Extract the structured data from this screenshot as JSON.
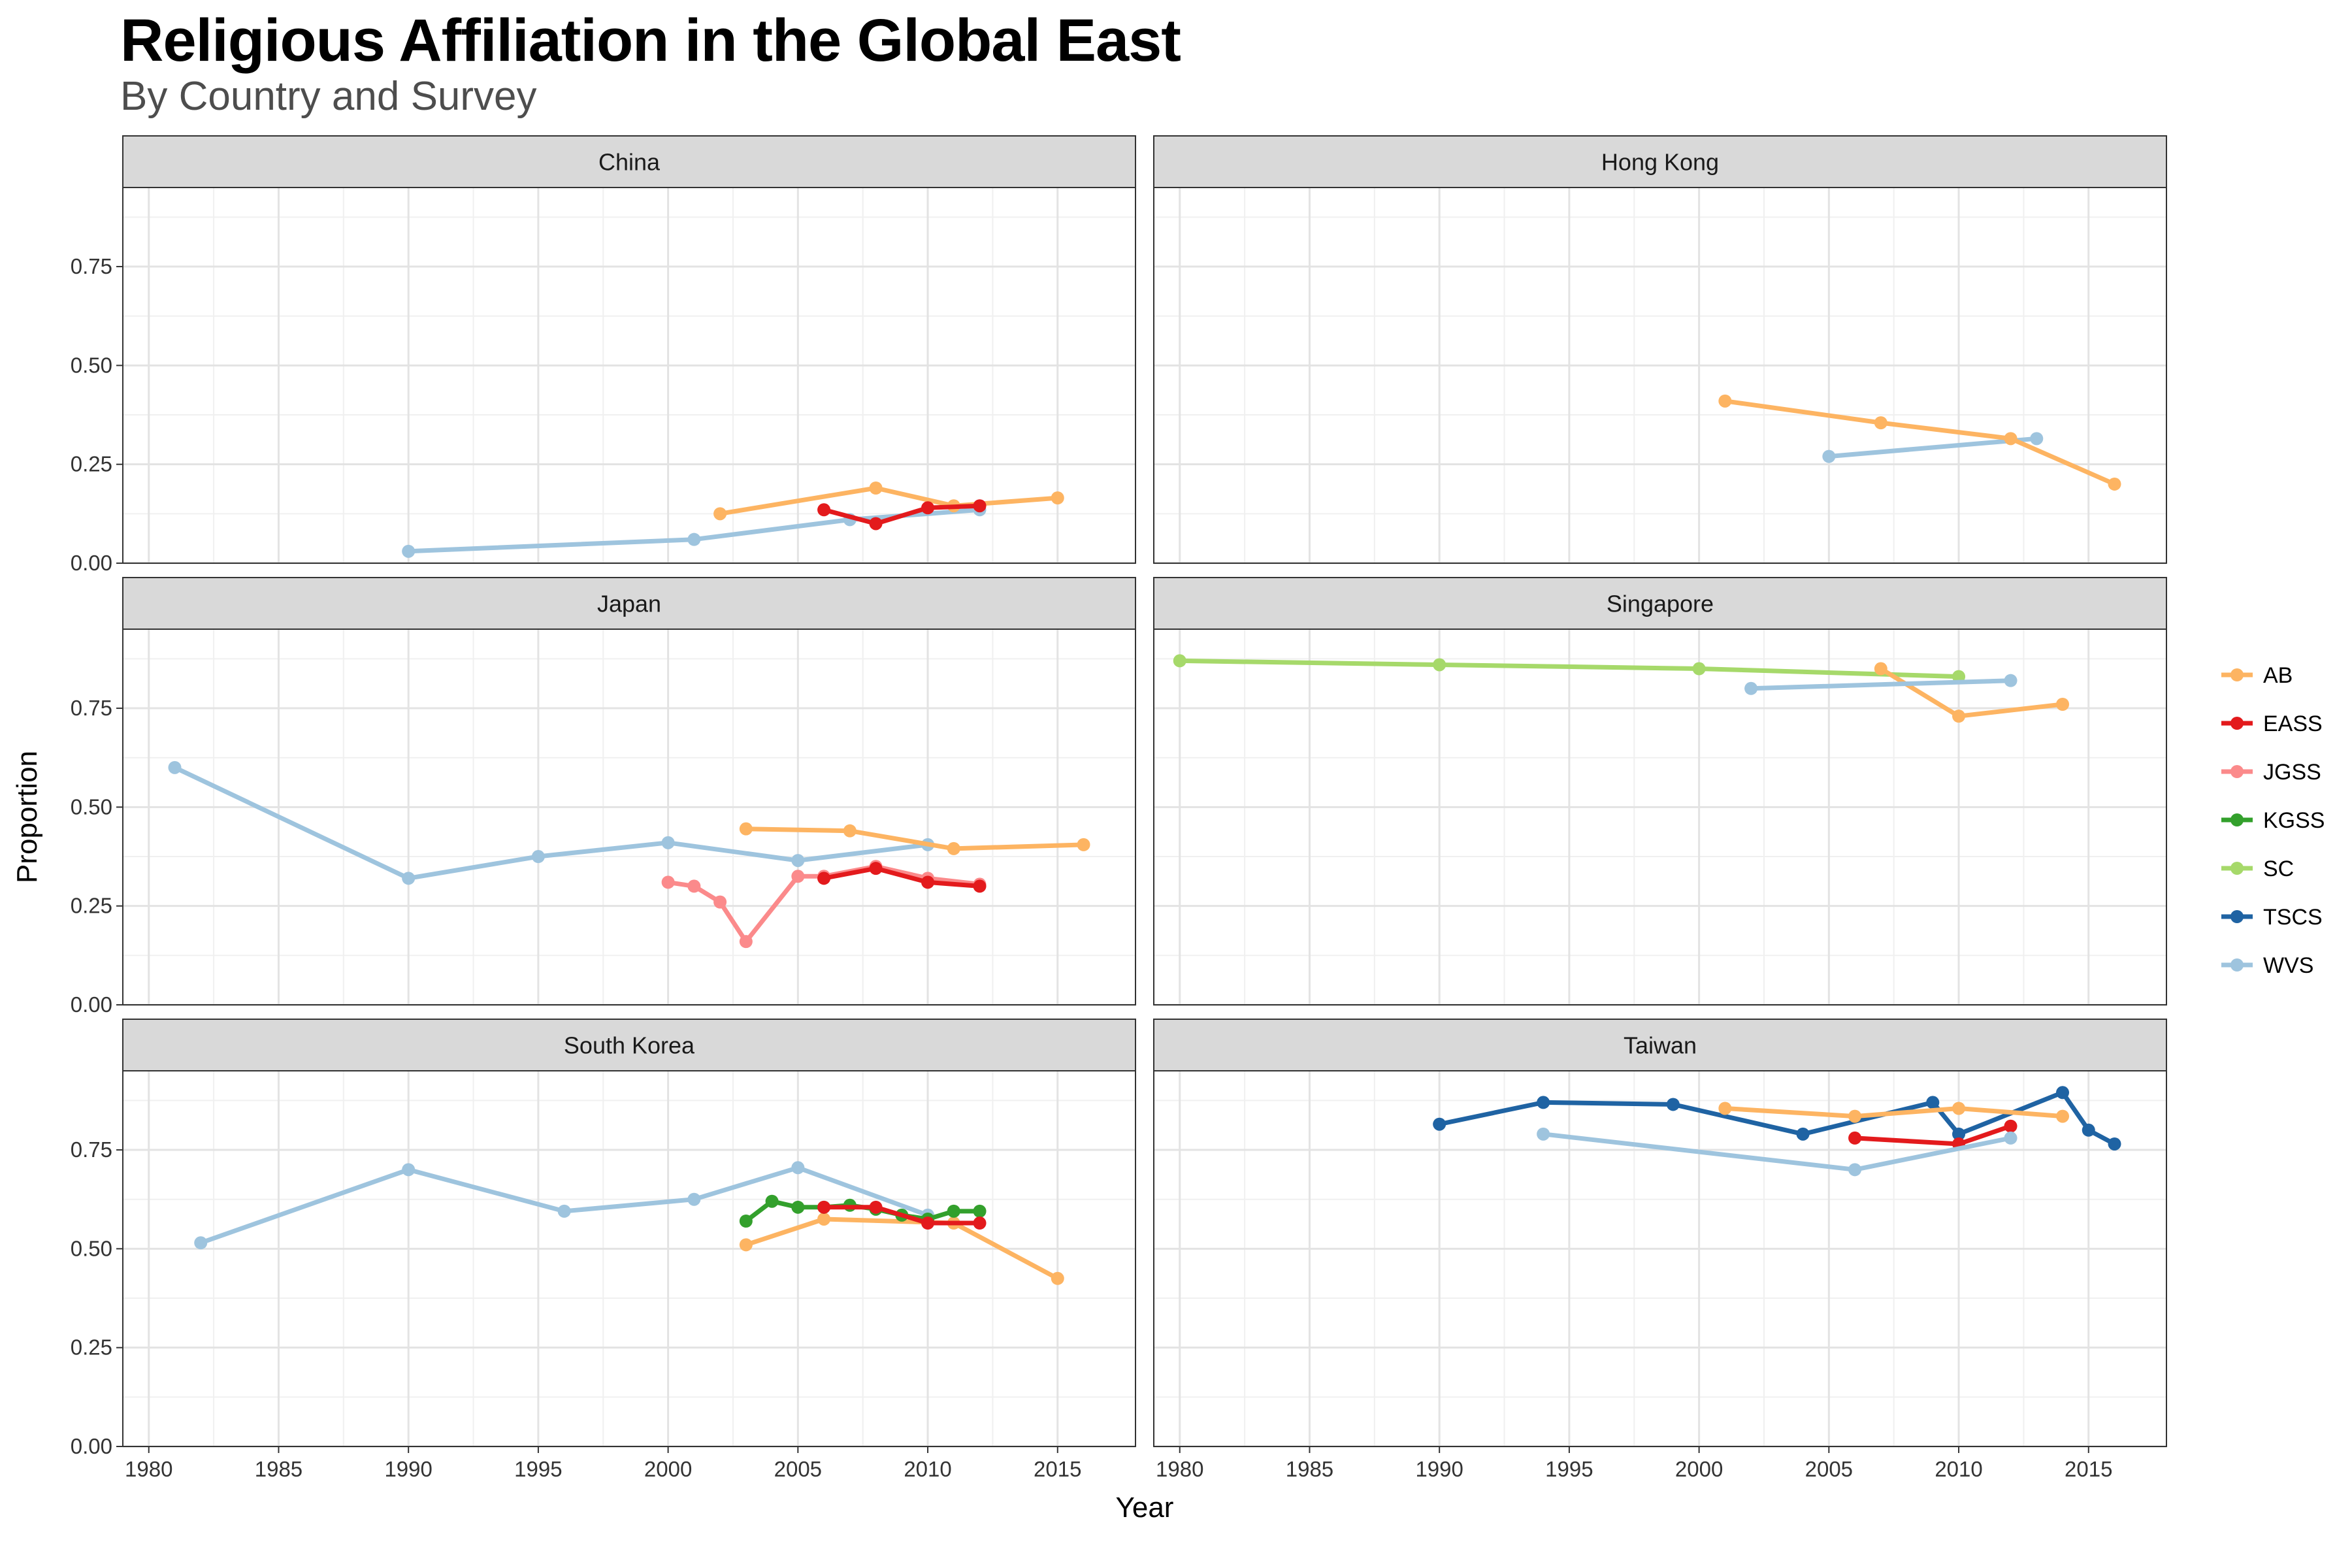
{
  "title": "Religious Affiliation in the Global East",
  "subtitle": "By Country and Survey",
  "chart_data": {
    "type": "line",
    "facet_layout": "3 rows x 2 columns",
    "xlabel": "Year",
    "ylabel": "Proportion",
    "xlim": [
      1979,
      2018
    ],
    "ylim": [
      0,
      0.95
    ],
    "x_ticks": [
      "1980",
      "1985",
      "1990",
      "1995",
      "2000",
      "2005",
      "2010",
      "2015"
    ],
    "y_ticks": [
      "0.00",
      "0.25",
      "0.50",
      "0.75"
    ],
    "grid": true,
    "legend_position": "right",
    "legend": [
      {
        "name": "AB",
        "color": "#FDB462"
      },
      {
        "name": "EASS",
        "color": "#E31A1C"
      },
      {
        "name": "JGSS",
        "color": "#FB8A8B"
      },
      {
        "name": "KGSS",
        "color": "#33A02C"
      },
      {
        "name": "SC",
        "color": "#A6D96A"
      },
      {
        "name": "TSCS",
        "color": "#1F63A3"
      },
      {
        "name": "WVS",
        "color": "#9EC4DE"
      }
    ],
    "panels": [
      {
        "name": "China",
        "series": [
          {
            "name": "WVS",
            "x": [
              1990,
              2001,
              2007,
              2012
            ],
            "y": [
              0.03,
              0.06,
              0.11,
              0.135
            ]
          },
          {
            "name": "AB",
            "x": [
              2002,
              2008,
              2011,
              2015
            ],
            "y": [
              0.125,
              0.19,
              0.145,
              0.165
            ]
          },
          {
            "name": "EASS",
            "x": [
              2006,
              2008,
              2010,
              2012
            ],
            "y": [
              0.135,
              0.1,
              0.14,
              0.145
            ]
          }
        ]
      },
      {
        "name": "Hong Kong",
        "series": [
          {
            "name": "WVS",
            "x": [
              2005,
              2013
            ],
            "y": [
              0.27,
              0.315
            ]
          },
          {
            "name": "AB",
            "x": [
              2001,
              2007,
              2012,
              2016
            ],
            "y": [
              0.41,
              0.355,
              0.315,
              0.2
            ]
          }
        ]
      },
      {
        "name": "Japan",
        "series": [
          {
            "name": "WVS",
            "x": [
              1981,
              1990,
              1995,
              2000,
              2005,
              2010
            ],
            "y": [
              0.6,
              0.32,
              0.375,
              0.41,
              0.365,
              0.405
            ]
          },
          {
            "name": "AB",
            "x": [
              2003,
              2007,
              2011,
              2016
            ],
            "y": [
              0.445,
              0.44,
              0.395,
              0.405
            ]
          },
          {
            "name": "JGSS",
            "x": [
              2000,
              2001,
              2002,
              2003,
              2005,
              2006,
              2008,
              2010,
              2012
            ],
            "y": [
              0.31,
              0.3,
              0.26,
              0.16,
              0.325,
              0.325,
              0.35,
              0.32,
              0.305
            ]
          },
          {
            "name": "EASS",
            "x": [
              2006,
              2008,
              2010,
              2012
            ],
            "y": [
              0.32,
              0.345,
              0.31,
              0.3
            ]
          }
        ]
      },
      {
        "name": "Singapore",
        "series": [
          {
            "name": "SC",
            "x": [
              1980,
              1990,
              2000,
              2010
            ],
            "y": [
              0.87,
              0.86,
              0.85,
              0.83
            ]
          },
          {
            "name": "AB",
            "x": [
              2007,
              2010,
              2014
            ],
            "y": [
              0.85,
              0.73,
              0.76
            ]
          },
          {
            "name": "WVS",
            "x": [
              2002,
              2012
            ],
            "y": [
              0.8,
              0.82
            ]
          }
        ]
      },
      {
        "name": "South Korea",
        "series": [
          {
            "name": "WVS",
            "x": [
              1982,
              1990,
              1996,
              2001,
              2005,
              2010
            ],
            "y": [
              0.515,
              0.7,
              0.595,
              0.625,
              0.705,
              0.585
            ]
          },
          {
            "name": "AB",
            "x": [
              2003,
              2006,
              2011,
              2015
            ],
            "y": [
              0.51,
              0.575,
              0.565,
              0.425
            ]
          },
          {
            "name": "KGSS",
            "x": [
              2003,
              2004,
              2005,
              2006,
              2007,
              2008,
              2009,
              2010,
              2011,
              2012
            ],
            "y": [
              0.57,
              0.62,
              0.605,
              0.605,
              0.61,
              0.6,
              0.585,
              0.575,
              0.595,
              0.595
            ]
          },
          {
            "name": "EASS",
            "x": [
              2006,
              2008,
              2010,
              2012
            ],
            "y": [
              0.605,
              0.605,
              0.565,
              0.565
            ]
          }
        ]
      },
      {
        "name": "Taiwan",
        "series": [
          {
            "name": "TSCS",
            "x": [
              1990,
              1994,
              1999,
              2004,
              2009,
              2010,
              2014,
              2015,
              2016
            ],
            "y": [
              0.815,
              0.87,
              0.865,
              0.79,
              0.87,
              0.79,
              0.895,
              0.8,
              0.765
            ]
          },
          {
            "name": "AB",
            "x": [
              2001,
              2006,
              2010,
              2014
            ],
            "y": [
              0.855,
              0.835,
              0.855,
              0.835
            ]
          },
          {
            "name": "EASS",
            "x": [
              2006,
              2010,
              2012
            ],
            "y": [
              0.78,
              0.765,
              0.81
            ]
          },
          {
            "name": "WVS",
            "x": [
              1994,
              2006,
              2012
            ],
            "y": [
              0.79,
              0.7,
              0.78
            ]
          }
        ]
      }
    ]
  }
}
